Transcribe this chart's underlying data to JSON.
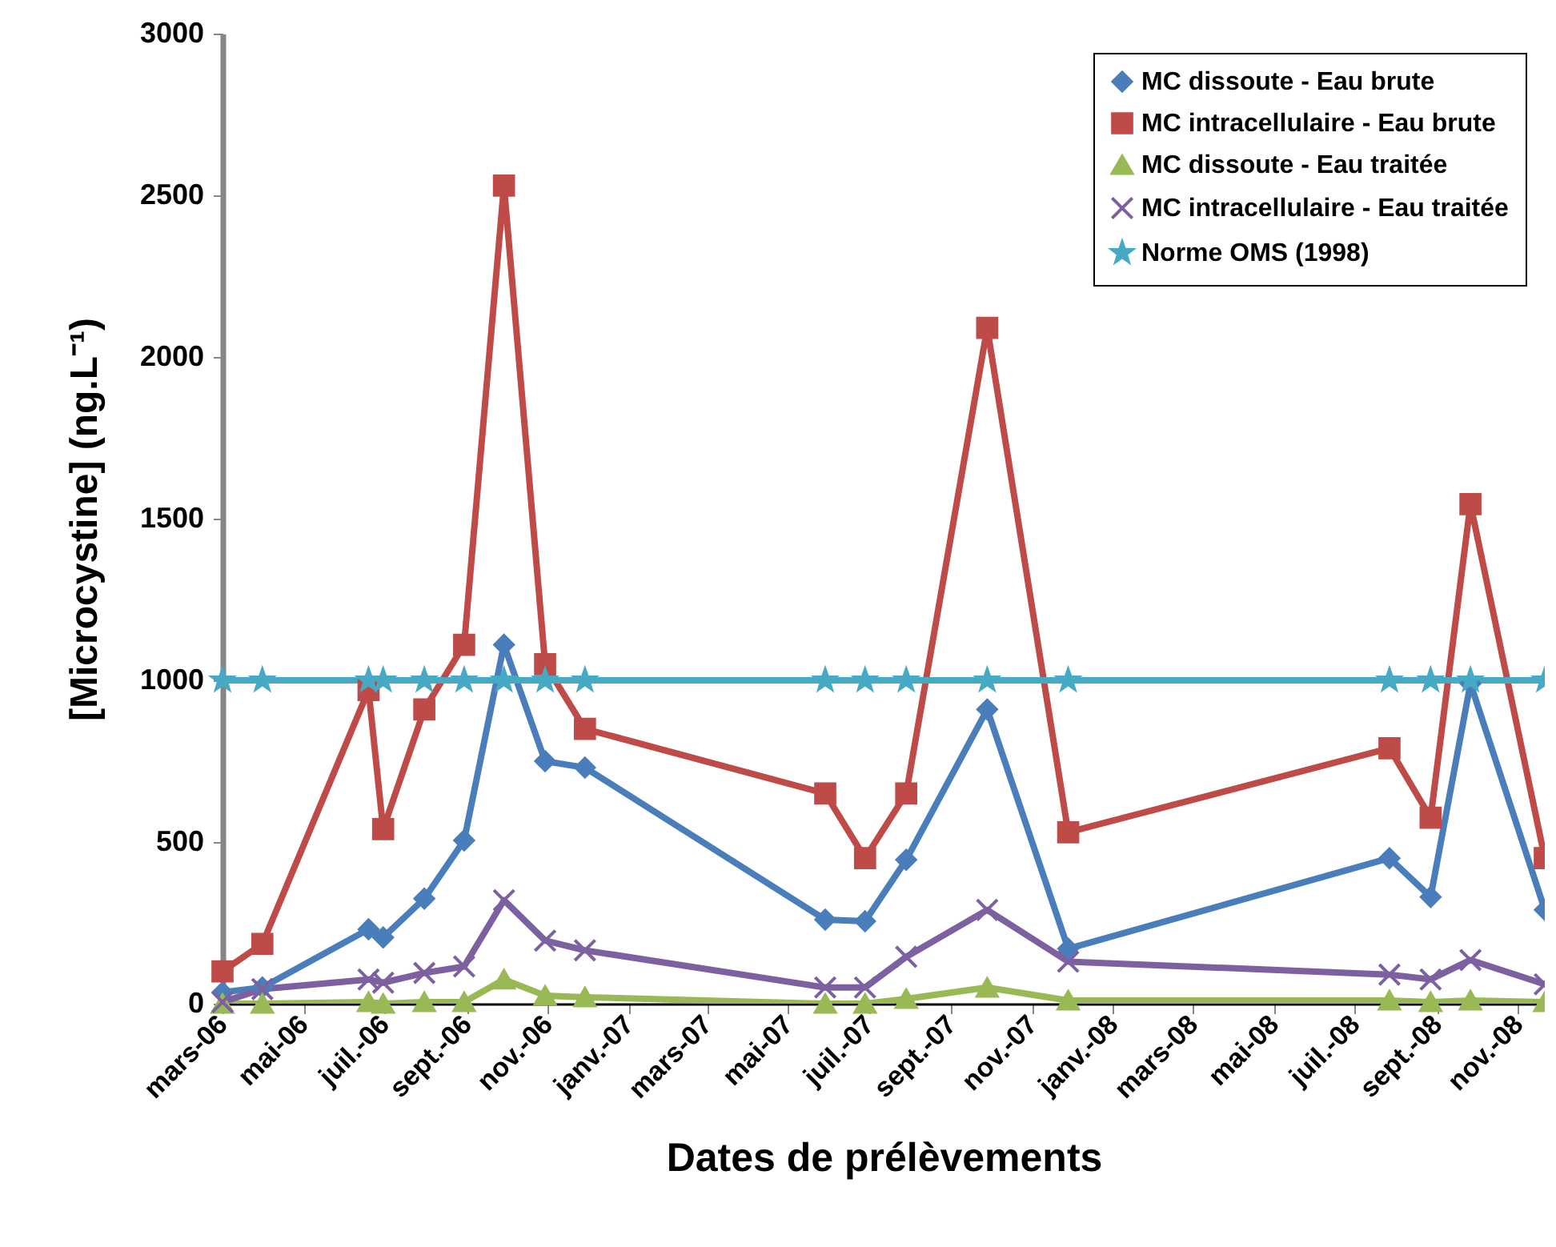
{
  "chart_data": {
    "type": "line",
    "xlabel": "Dates de prélèvements",
    "ylabel": "[Microcystine] (ng.L⁻¹)",
    "x": [
      "2006-03-01",
      "2006-03-31",
      "2006-06-19",
      "2006-06-30",
      "2006-07-31",
      "2006-08-30",
      "2006-09-29",
      "2006-10-30",
      "2006-11-29",
      "2007-05-29",
      "2007-06-28",
      "2007-07-29",
      "2007-09-28",
      "2007-11-28",
      "2008-07-27",
      "2008-08-27",
      "2008-09-26",
      "2008-11-21"
    ],
    "series": [
      {
        "name": "MC dissoute - Eau brute",
        "color": "#4a7ebb",
        "marker": "diamond",
        "values": [
          35,
          50,
          230,
          205,
          325,
          505,
          1110,
          750,
          730,
          260,
          255,
          445,
          910,
          170,
          450,
          330,
          990,
          290
        ]
      },
      {
        "name": "MC intracellulaire - Eau brute",
        "color": "#be4b48",
        "marker": "square",
        "values": [
          100,
          185,
          970,
          540,
          910,
          1110,
          2530,
          1050,
          850,
          650,
          450,
          650,
          2090,
          530,
          790,
          575,
          1545,
          450
        ]
      },
      {
        "name": "MC dissoute - Eau traitée",
        "color": "#98b954",
        "marker": "triangle",
        "values": [
          0,
          0,
          5,
          0,
          5,
          5,
          75,
          25,
          20,
          0,
          0,
          15,
          50,
          10,
          10,
          5,
          10,
          5
        ]
      },
      {
        "name": "MC intracellulaire - Eau traitée",
        "color": "#7d60a0",
        "marker": "cross",
        "values": [
          5,
          45,
          75,
          65,
          95,
          115,
          320,
          195,
          165,
          50,
          50,
          145,
          290,
          130,
          90,
          75,
          135,
          60
        ]
      },
      {
        "name": "Norme OMS  (1998)",
        "color": "#46aac5",
        "marker": "star",
        "values": [
          1000,
          1000,
          1000,
          1000,
          1000,
          1000,
          1000,
          1000,
          1000,
          1000,
          1000,
          1000,
          1000,
          1000,
          1000,
          1000,
          1000,
          1000
        ]
      }
    ],
    "xlim": [
      "2006-03-01",
      "2008-11-21"
    ],
    "xticks": [
      {
        "value": "2006-03-01",
        "label": "mars-06"
      },
      {
        "value": "2006-05-01",
        "label": "mai-06"
      },
      {
        "value": "2006-07-01",
        "label": "juil.-06"
      },
      {
        "value": "2006-09-01",
        "label": "sept.-06"
      },
      {
        "value": "2006-11-01",
        "label": "nov.-06"
      },
      {
        "value": "2007-01-01",
        "label": "janv.-07"
      },
      {
        "value": "2007-03-01",
        "label": "mars-07"
      },
      {
        "value": "2007-05-01",
        "label": "mai-07"
      },
      {
        "value": "2007-07-01",
        "label": "juil.-07"
      },
      {
        "value": "2007-09-01",
        "label": "sept.-07"
      },
      {
        "value": "2007-11-01",
        "label": "nov.-07"
      },
      {
        "value": "2008-01-01",
        "label": "janv.-08"
      },
      {
        "value": "2008-03-01",
        "label": "mars-08"
      },
      {
        "value": "2008-05-01",
        "label": "mai-08"
      },
      {
        "value": "2008-07-01",
        "label": "juil.-08"
      },
      {
        "value": "2008-09-01",
        "label": "sept.-08"
      },
      {
        "value": "2008-11-01",
        "label": "nov.-08"
      }
    ],
    "ylim": [
      0,
      3000
    ],
    "yticks": [
      0,
      500,
      1000,
      1500,
      2000,
      2500,
      3000
    ],
    "legend": "top right"
  }
}
